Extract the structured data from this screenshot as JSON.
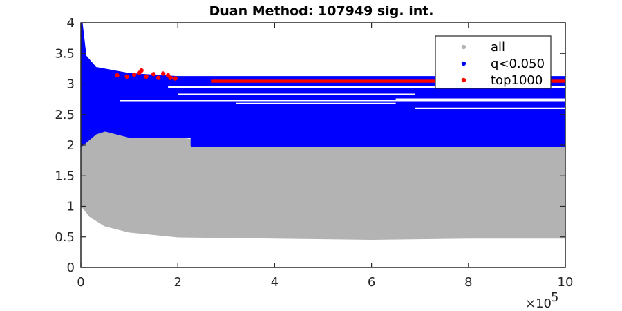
{
  "chart_data": {
    "type": "scatter",
    "title": "Duan Method: 107949 sig. int.",
    "xlabel": "",
    "ylabel": "",
    "xlim": [
      0,
      1000000
    ],
    "ylim": [
      0,
      4
    ],
    "x_ticks": [
      0,
      200000,
      400000,
      600000,
      800000,
      1000000
    ],
    "x_tick_labels": [
      "0",
      "2",
      "4",
      "6",
      "8",
      "10"
    ],
    "x_multiplier_base": "×10",
    "x_multiplier_exp": "5",
    "y_ticks": [
      0,
      0.5,
      1,
      1.5,
      2,
      2.5,
      3,
      3.5,
      4
    ],
    "y_tick_labels": [
      "0",
      "0.5",
      "1",
      "1.5",
      "2",
      "2.5",
      "3",
      "3.5",
      "4"
    ],
    "grid": false,
    "legend_position": "top-right",
    "series": [
      {
        "name": "all",
        "color": "#b3b3b3",
        "lower_envelope": [
          [
            0,
            1.05
          ],
          [
            5000,
            1.0
          ],
          [
            20000,
            0.85
          ],
          [
            50000,
            0.7
          ],
          [
            100000,
            0.6
          ],
          [
            200000,
            0.52
          ],
          [
            400000,
            0.5
          ],
          [
            600000,
            0.48
          ],
          [
            800000,
            0.5
          ],
          [
            1000000,
            0.5
          ]
        ],
        "upper_envelope": [
          [
            0,
            3.9
          ],
          [
            10000,
            3.0
          ],
          [
            40000,
            2.6
          ],
          [
            100000,
            2.2
          ],
          [
            300000,
            2.0
          ],
          [
            1000000,
            2.0
          ]
        ]
      },
      {
        "name": "q<0.050",
        "color": "#0000ff",
        "lower_envelope": [
          [
            0,
            2.0
          ],
          [
            30000,
            2.2
          ],
          [
            50000,
            2.25
          ],
          [
            100000,
            2.15
          ],
          [
            230000,
            2.15
          ],
          [
            230000,
            2.0
          ],
          [
            1000000,
            2.0
          ]
        ],
        "upper_envelope": [
          [
            0,
            4.0
          ],
          [
            8000,
            3.45
          ],
          [
            30000,
            3.25
          ],
          [
            100000,
            3.15
          ],
          [
            200000,
            3.1
          ],
          [
            600000,
            3.1
          ],
          [
            1000000,
            3.1
          ]
        ]
      },
      {
        "name": "top1000",
        "color": "#ff0000",
        "points": [
          [
            75000,
            3.14
          ],
          [
            95000,
            3.12
          ],
          [
            110000,
            3.15
          ],
          [
            120000,
            3.18
          ],
          [
            125000,
            3.22
          ],
          [
            135000,
            3.12
          ],
          [
            150000,
            3.16
          ],
          [
            160000,
            3.1
          ],
          [
            170000,
            3.17
          ],
          [
            180000,
            3.14
          ],
          [
            185000,
            3.1
          ],
          [
            195000,
            3.09
          ]
        ],
        "band": [
          [
            270000,
            3.02
          ],
          [
            1000000,
            3.07
          ]
        ]
      }
    ]
  }
}
